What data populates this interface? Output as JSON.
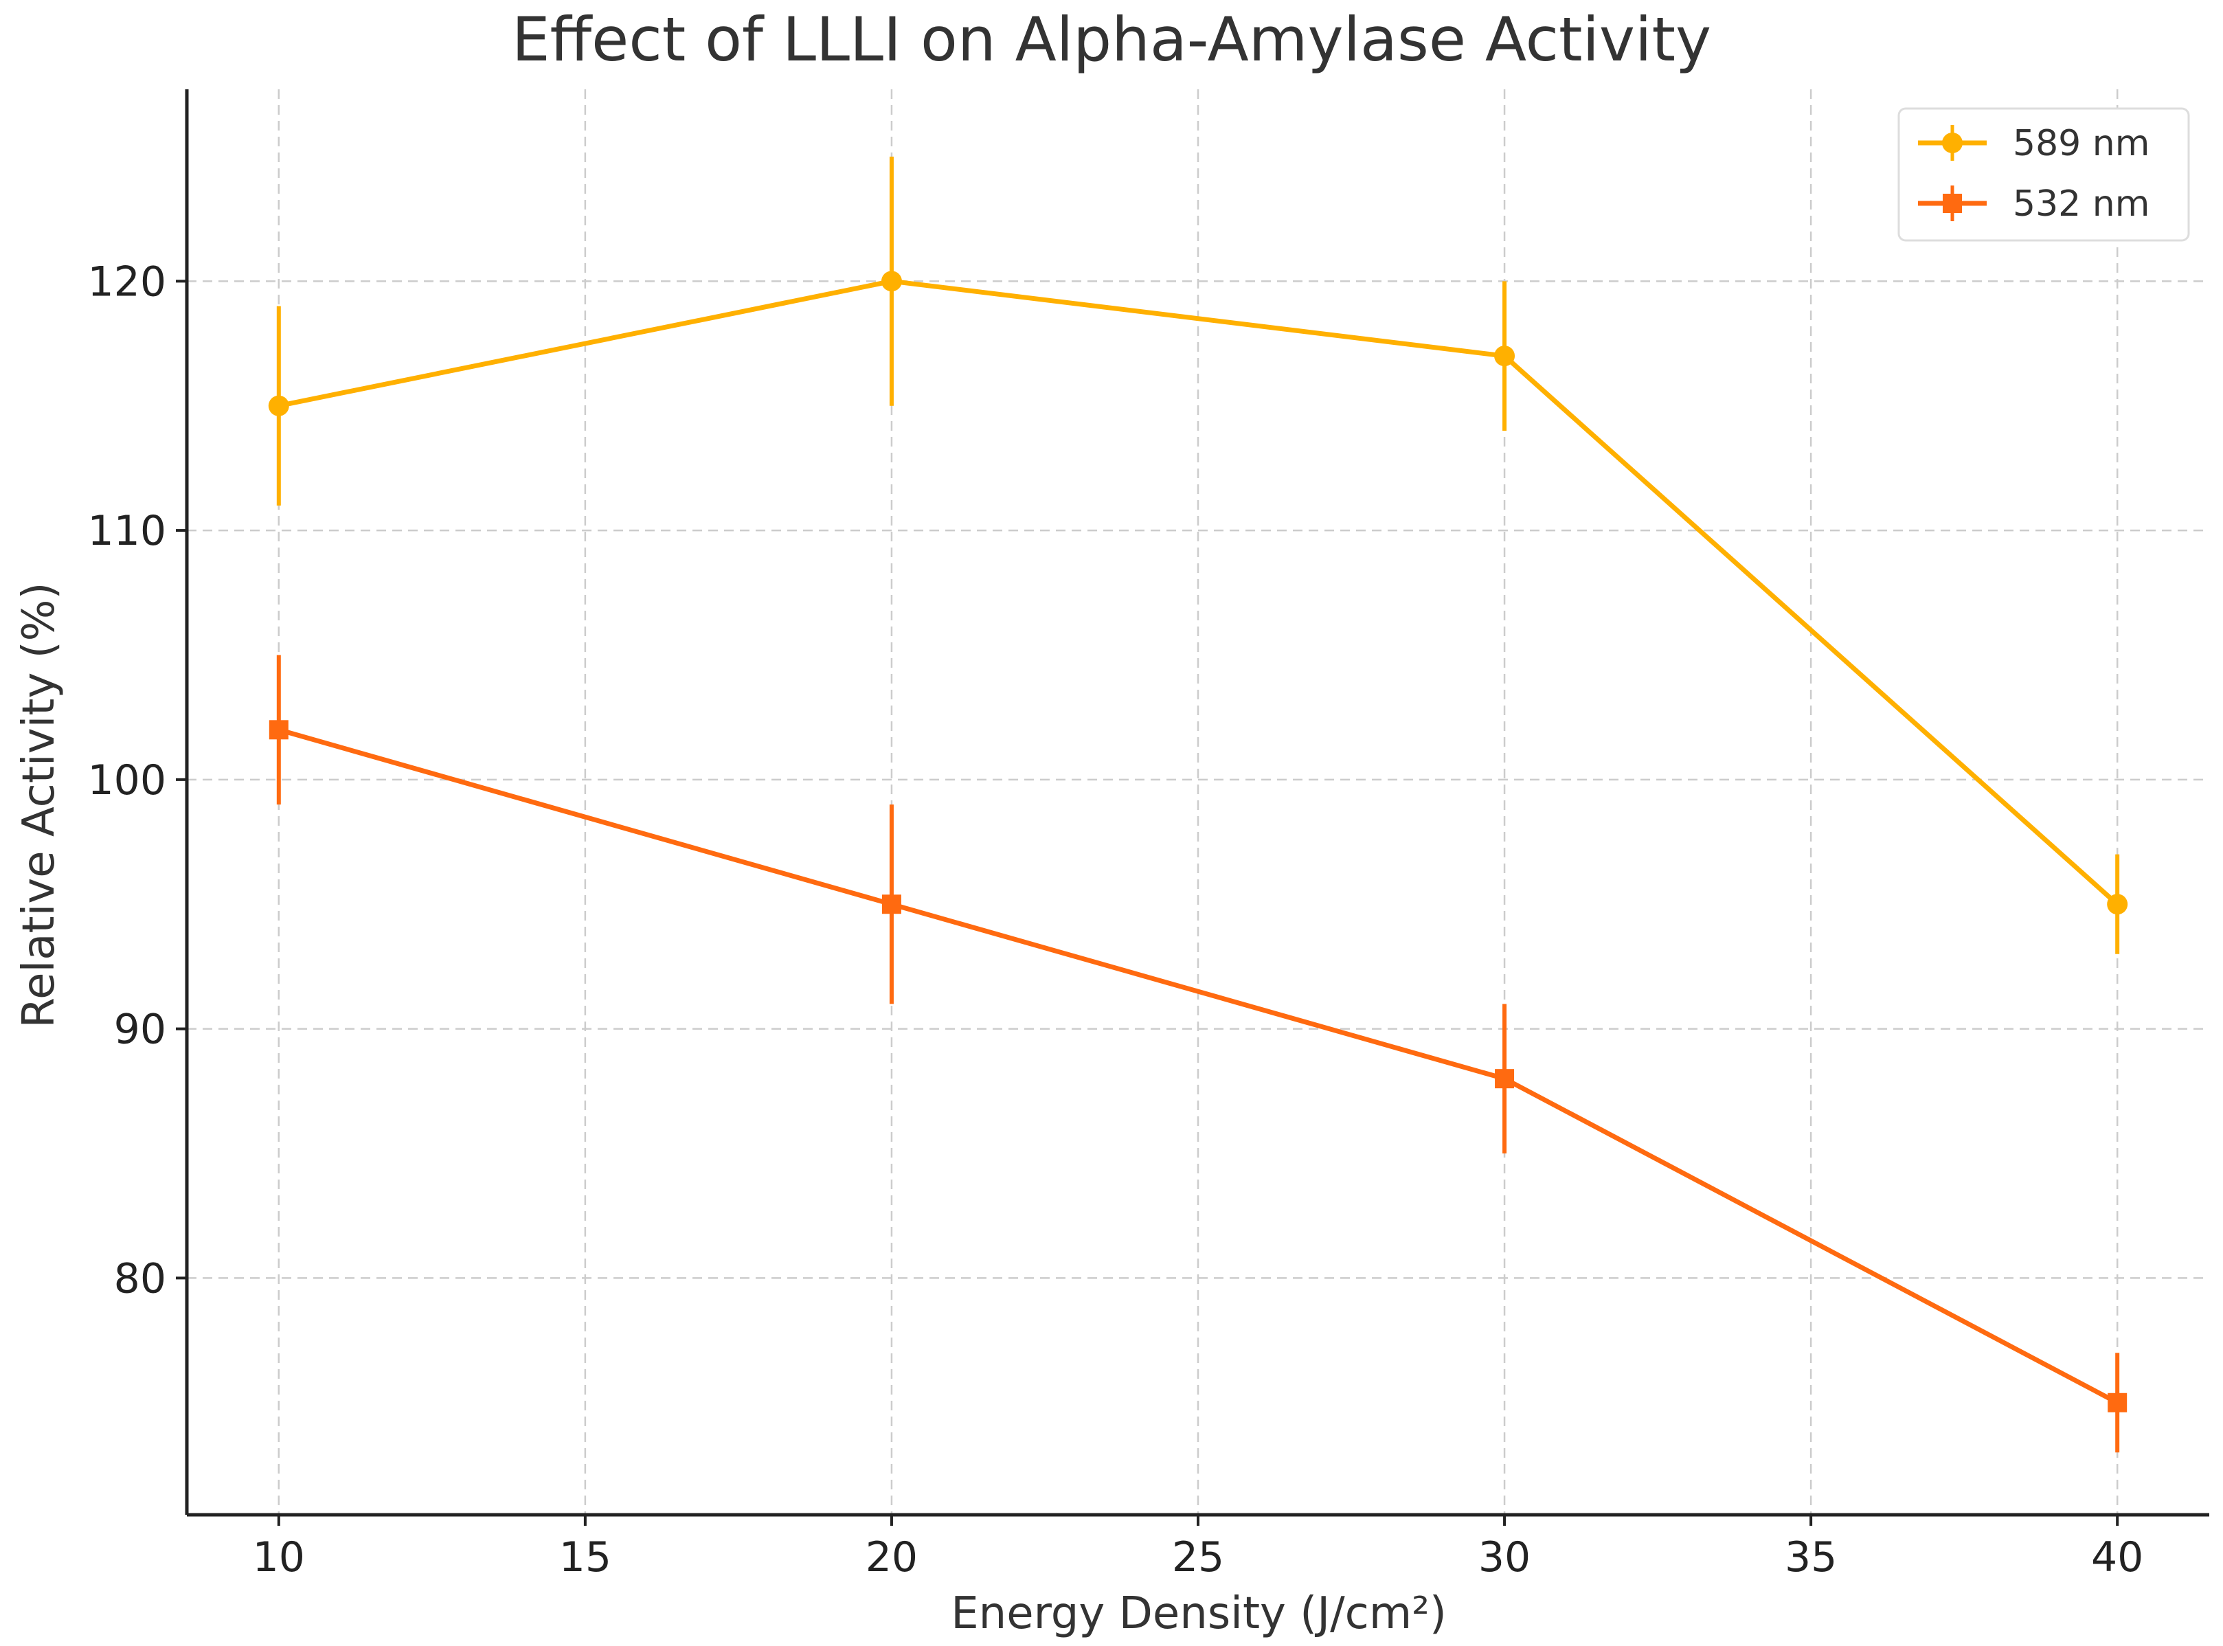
{
  "chart_data": {
    "type": "line",
    "title": "Effect of LLLI on Alpha-Amylase Activity",
    "xlabel": "Energy Density (J/cm²)",
    "ylabel": "Relative Activity (%)",
    "x": [
      10,
      20,
      30,
      40
    ],
    "xlim": [
      8.5,
      41.5
    ],
    "ylim": [
      70.5,
      127.7
    ],
    "xticks": [
      10,
      15,
      20,
      25,
      30,
      35,
      40
    ],
    "yticks": [
      80,
      90,
      100,
      110,
      120
    ],
    "grid": true,
    "legend_position": "top-right",
    "series": [
      {
        "name": "589 nm",
        "color": "#FFB000",
        "marker": "circle",
        "values": [
          115,
          120,
          117,
          95
        ],
        "error_lower": [
          111,
          115,
          114,
          93
        ],
        "error_upper": [
          119,
          125,
          120,
          97
        ]
      },
      {
        "name": "532 nm",
        "color": "#FF6A10",
        "marker": "square",
        "values": [
          102,
          95,
          88,
          75
        ],
        "error_lower": [
          99,
          91,
          85,
          73
        ],
        "error_upper": [
          105,
          99,
          91,
          77
        ]
      }
    ]
  }
}
